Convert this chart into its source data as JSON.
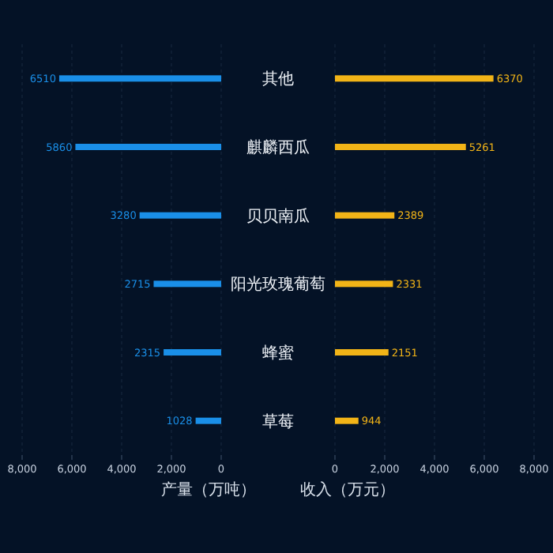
{
  "chart_data": [
    {
      "type": "bar",
      "orientation": "horizontal",
      "categories": [
        "其他",
        "麒麟西瓜",
        "贝贝南瓜",
        "阳光玫瑰葡萄",
        "蜂蜜",
        "草莓"
      ],
      "series": [
        {
          "color": "#1a8fe8",
          "values": [
            6510,
            5860,
            3280,
            2715,
            2315,
            1028
          ]
        }
      ],
      "xlim": [
        8000,
        0
      ],
      "xticks": [
        {
          "value": 8000,
          "label": "8,000"
        },
        {
          "value": 6000,
          "label": "6,000"
        },
        {
          "value": 4000,
          "label": "4,000"
        },
        {
          "value": 2000,
          "label": "2,000"
        },
        0
      ],
      "xlabel": "产量（万吨）",
      "data_labels": true,
      "grid": "x"
    },
    {
      "type": "bar",
      "orientation": "horizontal",
      "categories": [
        "其他",
        "麒麟西瓜",
        "贝贝南瓜",
        "阳光玫瑰葡萄",
        "蜂蜜",
        "草莓"
      ],
      "series": [
        {
          "color": "#f2b417",
          "values": [
            6370,
            5261,
            2389,
            2331,
            2151,
            944
          ]
        }
      ],
      "xlim": [
        0,
        8000
      ],
      "xticks": [
        0,
        {
          "value": 2000,
          "label": "2,000"
        },
        {
          "value": 4000,
          "label": "4,000"
        },
        {
          "value": 6000,
          "label": "6,000"
        },
        {
          "value": 8000,
          "label": "8,000"
        }
      ],
      "xlabel": "收入（万元）",
      "data_labels": true,
      "grid": "x",
      "tick_labels": "x"
    }
  ]
}
